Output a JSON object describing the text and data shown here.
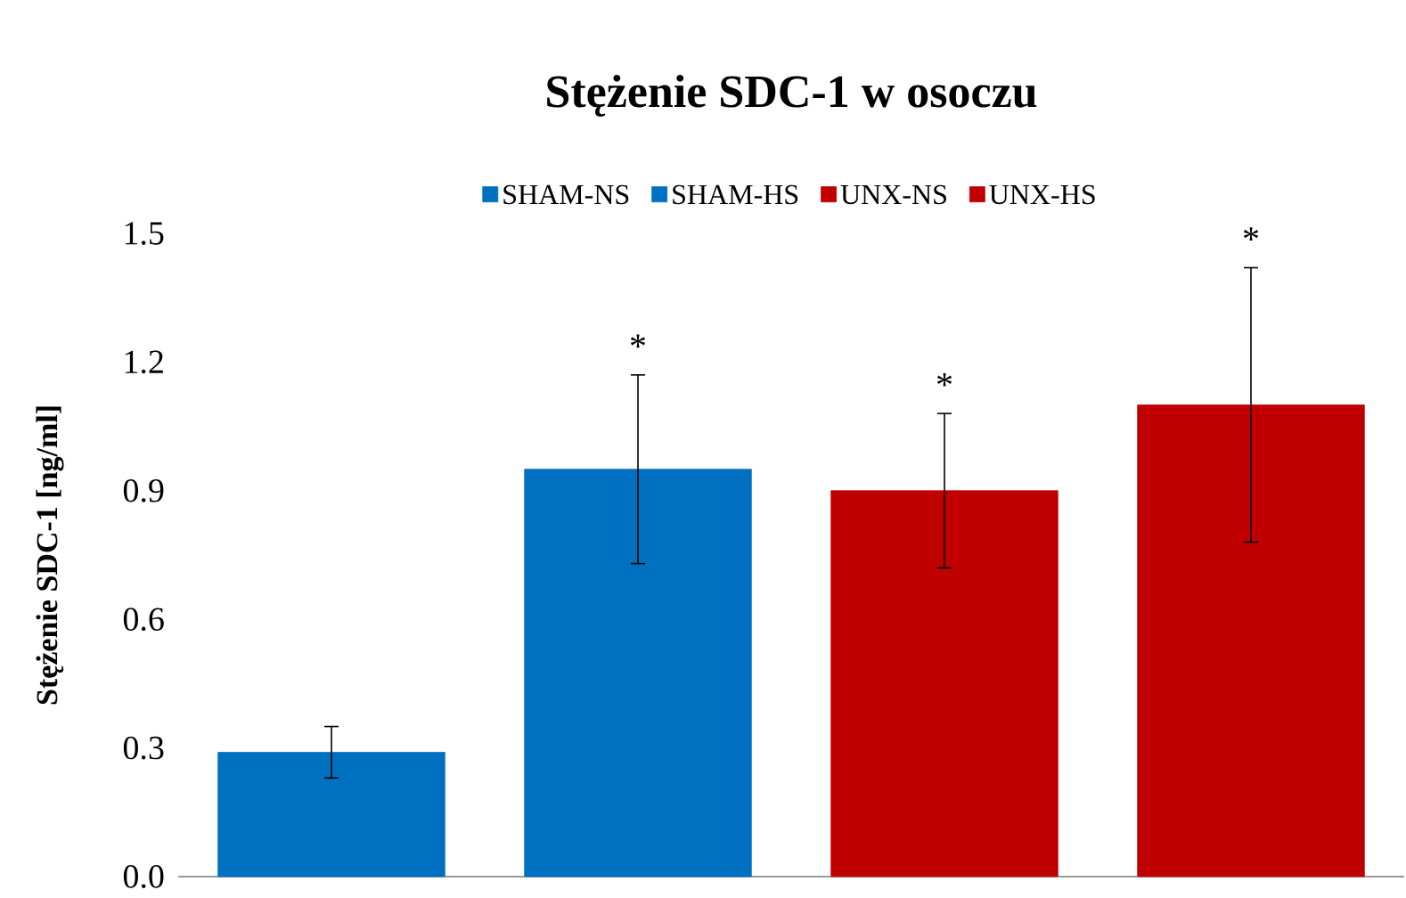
{
  "chart_data": {
    "type": "bar",
    "title": "Stężenie SDC-1 w osoczu",
    "ylabel": "Stężenie SDC-1 [ng/ml]",
    "categories": [
      null,
      null,
      null,
      null
    ],
    "series": [
      {
        "name": "SHAM-NS",
        "color": "#0070c0",
        "values": [
          0.29,
          null,
          null,
          null
        ],
        "errors": [
          0.06,
          null,
          null,
          null
        ]
      },
      {
        "name": "SHAM-HS",
        "color": "#0070c0",
        "values": [
          null,
          0.95,
          null,
          null
        ],
        "errors": [
          null,
          0.22,
          null,
          null
        ]
      },
      {
        "name": "UNX-NS",
        "color": "#c00000",
        "values": [
          null,
          null,
          0.9,
          null
        ],
        "errors": [
          null,
          null,
          0.18,
          null
        ]
      },
      {
        "name": "UNX-HS",
        "color": "#c00000",
        "values": [
          null,
          null,
          null,
          1.1
        ],
        "errors": [
          null,
          null,
          null,
          0.32
        ]
      }
    ],
    "annotations": [
      "*",
      "*",
      "*"
    ],
    "ylim": [
      0,
      1.5
    ],
    "yticks": [
      {
        "value": 0,
        "label": "0.0"
      },
      {
        "value": 0.3,
        "label": "0.3"
      },
      {
        "value": 0.6,
        "label": "0.6"
      },
      {
        "value": 0.9,
        "label": "0.9"
      },
      {
        "value": 1.2,
        "label": "1.2"
      },
      {
        "value": 1.5,
        "label": "1.5"
      }
    ],
    "legend": "top"
  }
}
